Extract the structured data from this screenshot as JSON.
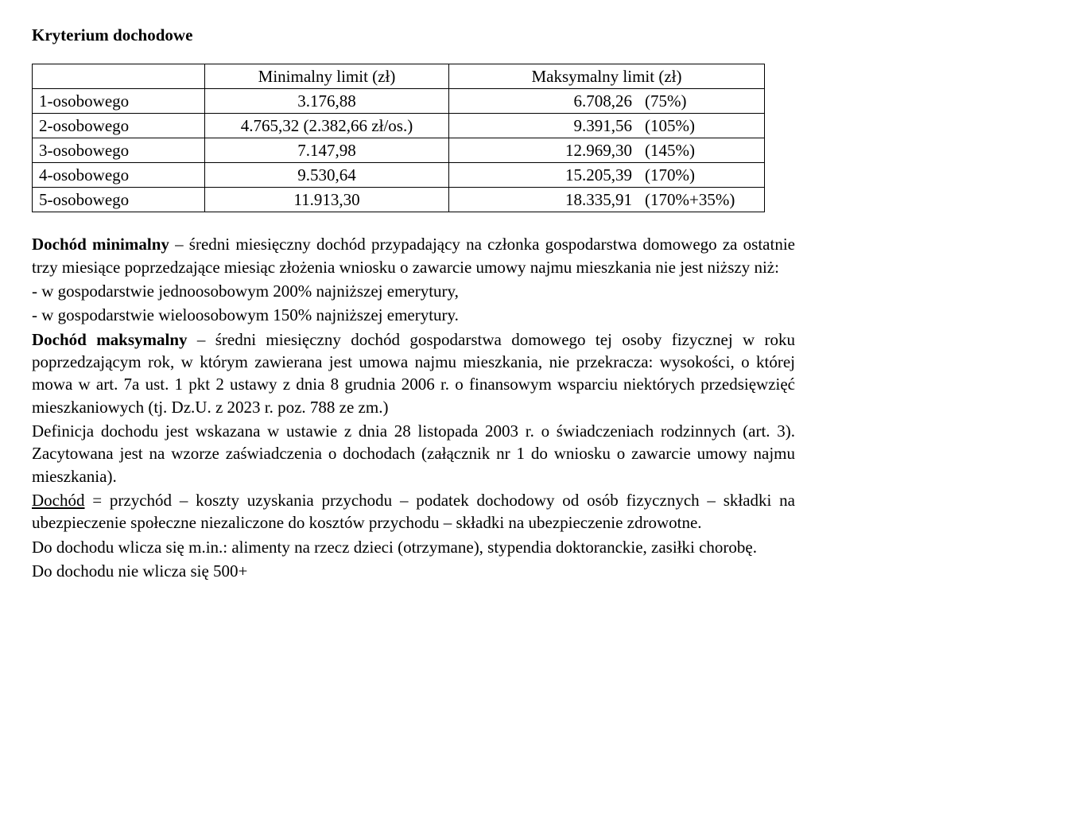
{
  "title": "Kryterium dochodowe",
  "table": {
    "header": {
      "label": "",
      "min": "Minimalny limit (zł)",
      "max": "Maksymalny limit (zł)"
    },
    "rows": [
      {
        "label": "1-osobowego",
        "min": "3.176,88",
        "max_val": "6.708,26",
        "max_pct": "(75%)"
      },
      {
        "label": "2-osobowego",
        "min": "4.765,32 (2.382,66 zł/os.)",
        "max_val": "9.391,56",
        "max_pct": "(105%)"
      },
      {
        "label": "3-osobowego",
        "min": "7.147,98",
        "max_val": "12.969,30",
        "max_pct": "(145%)"
      },
      {
        "label": "4-osobowego",
        "min": "9.530,64",
        "max_val": "15.205,39",
        "max_pct": "(170%)"
      },
      {
        "label": "5-osobowego",
        "min": "11.913,30",
        "max_val": "18.335,91",
        "max_pct": "(170%+35%)"
      }
    ]
  },
  "para1": {
    "lead": "Dochód minimalny",
    "body": " – średni miesięczny dochód przypadający na członka gospodarstwa domowego za ostatnie trzy miesiące poprzedzające miesiąc złożenia wniosku o zawarcie umowy najmu mieszkania nie jest niższy niż:"
  },
  "para1_b1": "- w gospodarstwie jednoosobowym 200% najniższej emerytury,",
  "para1_b2": "- w gospodarstwie wieloosobowym 150% najniższej emerytury.",
  "para2": {
    "lead": "Dochód maksymalny",
    "body": " – średni miesięczny dochód gospodarstwa domowego tej osoby fizycznej w roku poprzedzającym rok, w którym zawierana jest umowa najmu mieszkania, nie przekracza: wysokości, o której mowa w art. 7a ust. 1 pkt 2 ustawy z dnia 8 grudnia 2006 r. o finansowym wsparciu niektórych przedsięwzięć mieszkaniowych (tj. Dz.U. z 2023 r. poz. 788 ze zm.)"
  },
  "para3": "Definicja dochodu jest wskazana w ustawie z dnia 28 listopada 2003 r. o świadczeniach rodzinnych (art. 3). Zacytowana jest na wzorze zaświadczenia o dochodach (załącznik nr 1 do wniosku o zawarcie umowy najmu mieszkania).",
  "para4": {
    "lead": "Dochód",
    "body": " = przychód – koszty uzyskania przychodu – podatek dochodowy od osób fizycznych – składki na ubezpieczenie społeczne niezaliczone do kosztów przychodu – składki na ubezpieczenie zdrowotne."
  },
  "para5": "Do dochodu wlicza się m.in.: alimenty na rzecz dzieci (otrzymane), stypendia doktoranckie, zasiłki chorobę.",
  "para6": "Do dochodu nie wlicza się 500+"
}
